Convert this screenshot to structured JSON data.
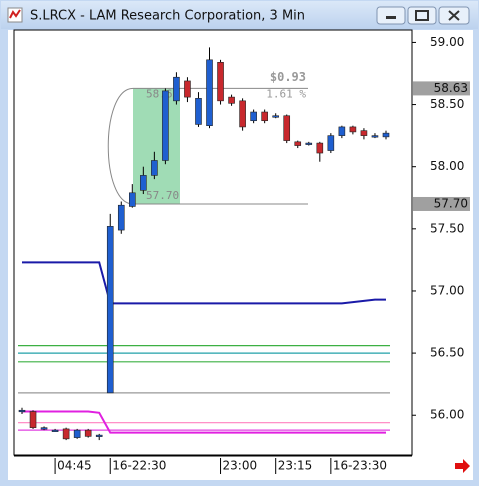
{
  "chart_data": {
    "type": "candlestick",
    "title": "S.LRCX - LAM Research Corporation, 3 Min",
    "categories": [
      null,
      null,
      null,
      "04:45",
      null,
      null,
      null,
      null,
      "16-22:30",
      null,
      null,
      null,
      null,
      null,
      null,
      null,
      null,
      null,
      "23:00",
      null,
      null,
      null,
      null,
      "23:15",
      null,
      null,
      null,
      null,
      "16-23:30",
      null,
      null,
      null,
      null,
      null
    ],
    "candles": [
      {
        "open": 56.03,
        "high": 56.06,
        "low": 56.01,
        "close": 56.04
      },
      {
        "open": 56.03,
        "high": 56.04,
        "low": 55.89,
        "close": 55.9
      },
      {
        "open": 55.89,
        "high": 55.91,
        "low": 55.88,
        "close": 55.9
      },
      {
        "open": 55.88,
        "high": 55.89,
        "low": 55.87,
        "close": 55.88
      },
      {
        "open": 55.89,
        "high": 55.9,
        "low": 55.8,
        "close": 55.81
      },
      {
        "open": 55.82,
        "high": 55.89,
        "low": 55.81,
        "close": 55.88
      },
      {
        "open": 55.88,
        "high": 55.89,
        "low": 55.82,
        "close": 55.83
      },
      {
        "open": 55.84,
        "high": 55.85,
        "low": 55.8,
        "close": 55.84
      },
      {
        "open": 56.18,
        "high": 57.62,
        "low": 56.18,
        "close": 57.52
      },
      {
        "open": 57.49,
        "high": 57.72,
        "low": 57.46,
        "close": 57.69
      },
      {
        "open": 57.68,
        "high": 57.86,
        "low": 57.67,
        "close": 57.79
      },
      {
        "open": 57.81,
        "high": 58.0,
        "low": 57.78,
        "close": 57.93
      },
      {
        "open": 57.93,
        "high": 58.12,
        "low": 57.9,
        "close": 58.05
      },
      {
        "open": 58.05,
        "high": 58.63,
        "low": 58.02,
        "close": 58.61
      },
      {
        "open": 58.53,
        "high": 58.76,
        "low": 58.5,
        "close": 58.72
      },
      {
        "open": 58.69,
        "high": 58.72,
        "low": 58.52,
        "close": 58.56
      },
      {
        "open": 58.34,
        "high": 58.6,
        "low": 58.32,
        "close": 58.55
      },
      {
        "open": 58.33,
        "high": 58.96,
        "low": 58.31,
        "close": 58.86
      },
      {
        "open": 58.84,
        "high": 58.86,
        "low": 58.5,
        "close": 58.53
      },
      {
        "open": 58.56,
        "high": 58.58,
        "low": 58.49,
        "close": 58.51
      },
      {
        "open": 58.53,
        "high": 58.55,
        "low": 58.29,
        "close": 58.32
      },
      {
        "open": 58.37,
        "high": 58.46,
        "low": 58.35,
        "close": 58.44
      },
      {
        "open": 58.44,
        "high": 58.46,
        "low": 58.35,
        "close": 58.37
      },
      {
        "open": 58.41,
        "high": 58.43,
        "low": 58.39,
        "close": 58.41
      },
      {
        "open": 58.41,
        "high": 58.42,
        "low": 58.19,
        "close": 58.21
      },
      {
        "open": 58.2,
        "high": 58.21,
        "low": 58.15,
        "close": 58.17
      },
      {
        "open": 58.19,
        "high": 58.2,
        "low": 58.17,
        "close": 58.19
      },
      {
        "open": 58.19,
        "high": 58.2,
        "low": 58.04,
        "close": 58.11
      },
      {
        "open": 58.13,
        "high": 58.27,
        "low": 58.11,
        "close": 58.25
      },
      {
        "open": 58.25,
        "high": 58.33,
        "low": 58.23,
        "close": 58.32
      },
      {
        "open": 58.32,
        "high": 58.33,
        "low": 58.26,
        "close": 58.28
      },
      {
        "open": 58.29,
        "high": 58.31,
        "low": 58.22,
        "close": 58.25
      },
      {
        "open": 58.25,
        "high": 58.27,
        "low": 58.23,
        "close": 58.25
      },
      {
        "open": 58.24,
        "high": 58.29,
        "low": 58.22,
        "close": 58.27
      }
    ],
    "up_color": "#1f5fd0",
    "down_color": "#c8282d",
    "lines": [
      {
        "color": "#1a1aa8",
        "values": [
          57.23,
          57.23,
          57.23,
          57.23,
          57.23,
          57.23,
          57.23,
          57.23,
          56.9,
          56.9,
          56.9,
          56.9,
          56.9,
          56.9,
          56.9,
          56.9,
          56.9,
          56.9,
          56.9,
          56.9,
          56.9,
          56.9,
          56.9,
          56.9,
          56.9,
          56.9,
          56.9,
          56.9,
          56.9,
          56.9,
          56.91,
          56.92,
          56.93,
          56.93
        ]
      },
      {
        "color": "#e020e0",
        "values": [
          56.03,
          56.03,
          56.03,
          56.03,
          56.03,
          56.03,
          56.03,
          56.02,
          55.86,
          55.86,
          55.86,
          55.86,
          55.86,
          55.86,
          55.86,
          55.86,
          55.86,
          55.86,
          55.86,
          55.86,
          55.86,
          55.86,
          55.86,
          55.86,
          55.86,
          55.86,
          55.86,
          55.86,
          55.86,
          55.86,
          55.86,
          55.86,
          55.86,
          55.86
        ]
      }
    ],
    "levels": [
      {
        "value": 56.56,
        "color": "#3cb043"
      },
      {
        "value": 56.5,
        "color": "#20a0a8"
      },
      {
        "value": 56.43,
        "color": "#3cb043"
      },
      {
        "value": 56.18,
        "color": "#999999"
      },
      {
        "value": 55.94,
        "color": "#ff80c0"
      },
      {
        "value": 55.88,
        "color": "#e040e0"
      }
    ],
    "measure": {
      "start": {
        "value": 57.7,
        "label": "57.70"
      },
      "end": {
        "value": 58.63,
        "label": "58.63"
      },
      "change": "$0.93",
      "percent": "1.61 %",
      "color": "#8fd6a8"
    },
    "price_markers": [
      {
        "value": 58.63,
        "label": "58.63"
      },
      {
        "value": 57.7,
        "label": "57.70"
      }
    ],
    "ylim": [
      55.68,
      59.1
    ],
    "yticks": [
      {
        "value": 56,
        "label": "56.00"
      },
      {
        "value": 56.5,
        "label": "56.50"
      },
      {
        "value": 57,
        "label": "57.00"
      },
      {
        "value": 57.5,
        "label": "57.50"
      },
      {
        "value": 58,
        "label": "58.00"
      },
      {
        "value": 58.5,
        "label": "58.50"
      },
      {
        "value": 59,
        "label": "59.00"
      }
    ]
  }
}
